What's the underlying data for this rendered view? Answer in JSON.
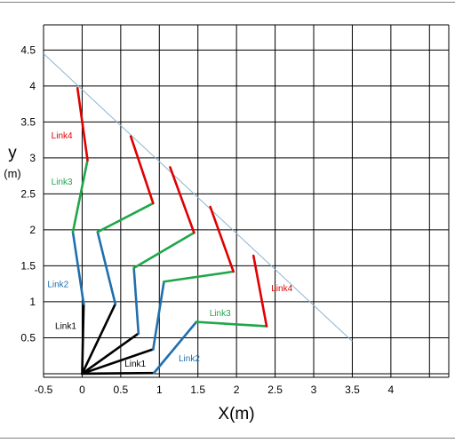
{
  "chart_data": {
    "type": "line",
    "xlabel": "X(m)",
    "ylabel_main": "y",
    "ylabel_unit": "(m)",
    "x_ticks": [
      "-0.5",
      "0",
      "0.5",
      "1",
      "1.5",
      "2",
      "2.5",
      "3",
      "3.5",
      "4"
    ],
    "y_ticks": [
      "0.5",
      "1",
      "1.5",
      "2",
      "2.5",
      "3",
      "3.5",
      "4",
      "4.5"
    ],
    "xlim": [
      -0.5,
      4.75
    ],
    "ylim": [
      -0.05,
      4.85
    ],
    "grid": true,
    "colors": {
      "link1": "#000000",
      "link2": "#1f6fae",
      "link3": "#1fa64a",
      "link4": "#e00000",
      "reference_line": "#8fb4d0"
    },
    "reference_line": {
      "x": [
        -0.5,
        3.5
      ],
      "y": [
        4.45,
        0.45
      ]
    },
    "configurations": [
      {
        "points": [
          [
            0,
            0
          ],
          [
            0.02,
            0.97
          ],
          [
            -0.12,
            1.97
          ],
          [
            0.07,
            2.97
          ],
          [
            -0.06,
            3.97
          ]
        ]
      },
      {
        "points": [
          [
            0,
            0
          ],
          [
            0.43,
            0.97
          ],
          [
            0.2,
            1.97
          ],
          [
            0.92,
            2.37
          ],
          [
            0.63,
            3.3
          ]
        ]
      },
      {
        "points": [
          [
            0,
            0
          ],
          [
            0.73,
            0.56
          ],
          [
            0.67,
            1.47
          ],
          [
            1.45,
            1.96
          ],
          [
            1.14,
            2.87
          ]
        ]
      },
      {
        "points": [
          [
            0,
            0
          ],
          [
            0.92,
            0.34
          ],
          [
            1.06,
            1.28
          ],
          [
            1.96,
            1.42
          ],
          [
            1.66,
            2.32
          ]
        ]
      },
      {
        "points": [
          [
            0,
            0
          ],
          [
            0.93,
            0.01
          ],
          [
            1.48,
            0.72
          ],
          [
            2.39,
            0.66
          ],
          [
            2.22,
            1.64
          ]
        ]
      }
    ],
    "annotations": [
      {
        "text": "Link4",
        "x": -0.4,
        "y": 3.27,
        "color_key": "link4"
      },
      {
        "text": "Link3",
        "x": -0.4,
        "y": 2.63,
        "color_key": "link3"
      },
      {
        "text": "Link2",
        "x": -0.45,
        "y": 1.2,
        "color_key": "link2"
      },
      {
        "text": "Link1",
        "x": -0.35,
        "y": 0.62,
        "color_key": "link1"
      },
      {
        "text": "Link1",
        "x": 0.55,
        "y": 0.1,
        "color_key": "link1"
      },
      {
        "text": "Link2",
        "x": 1.25,
        "y": 0.17,
        "color_key": "link2"
      },
      {
        "text": "Link3",
        "x": 1.65,
        "y": 0.8,
        "color_key": "link3"
      },
      {
        "text": "Link4",
        "x": 2.45,
        "y": 1.15,
        "color_key": "link4"
      }
    ]
  }
}
